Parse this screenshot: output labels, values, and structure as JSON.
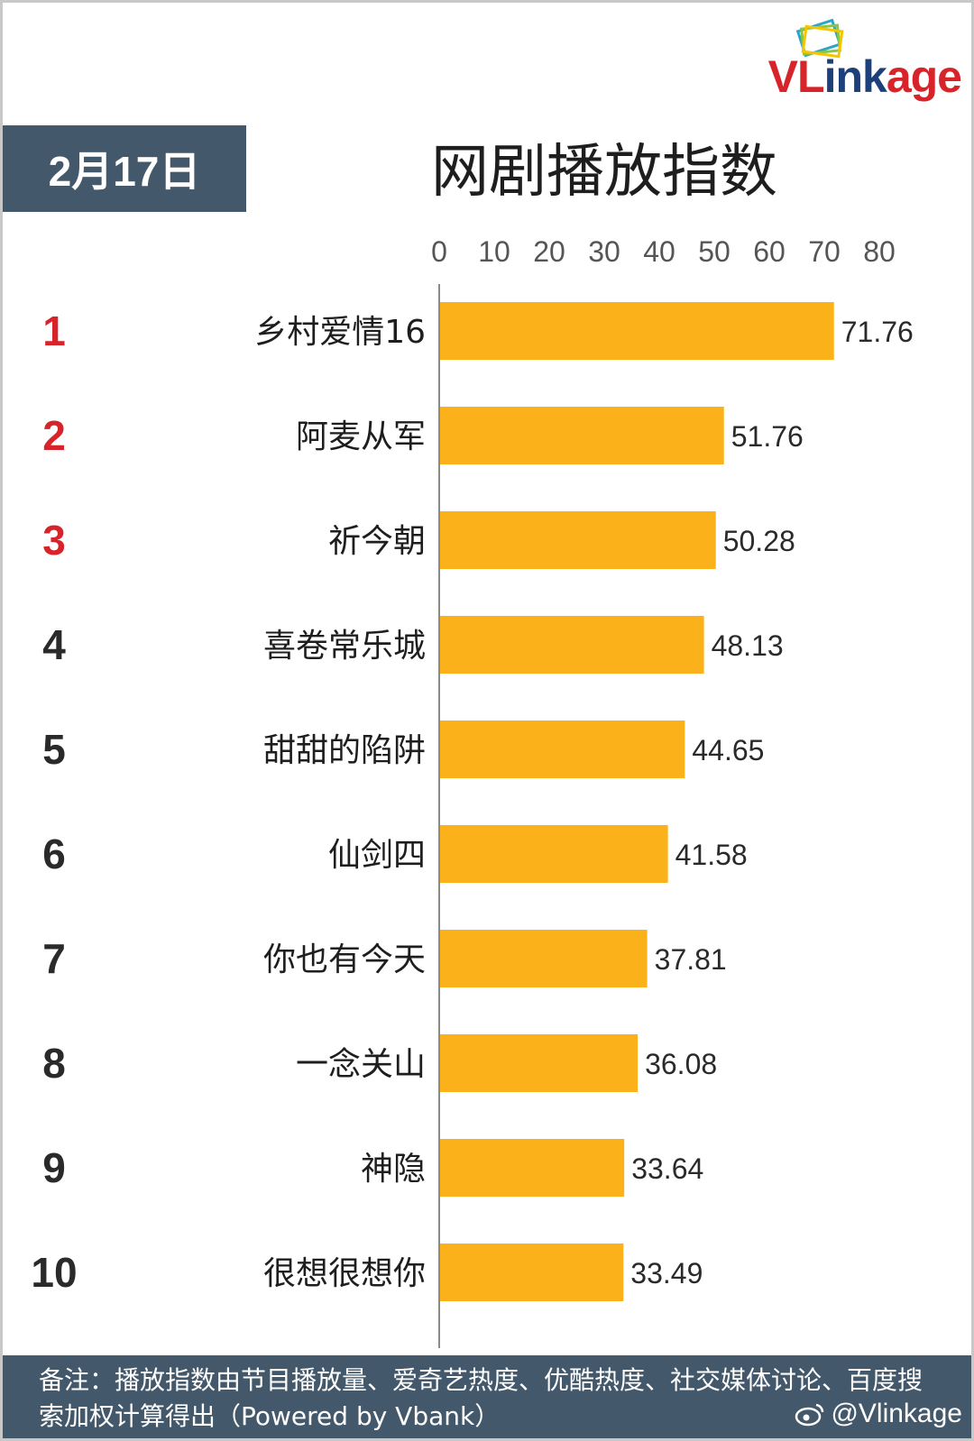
{
  "header": {
    "date": "2月17日",
    "title": "网剧播放指数"
  },
  "logo": {
    "text_red": "VL",
    "text_blue": "ink",
    "text_red2": "age"
  },
  "colors": {
    "bar": "#fbb21a",
    "rank_top": "#d7242b",
    "rank_other": "#2a2a2a",
    "badge_bg": "#44586b"
  },
  "chart_data": {
    "type": "bar",
    "orientation": "horizontal",
    "title": "网剧播放指数",
    "ranks": [
      "1",
      "2",
      "3",
      "4",
      "5",
      "6",
      "7",
      "8",
      "9",
      "10"
    ],
    "categories": [
      "乡村爱情16",
      "阿麦从军",
      "祈今朝",
      "喜卷常乐城",
      "甜甜的陷阱",
      "仙剑四",
      "你也有今天",
      "一念关山",
      "神隐",
      "很想很想你"
    ],
    "values": [
      71.76,
      51.76,
      50.28,
      48.13,
      44.65,
      41.58,
      37.81,
      36.08,
      33.64,
      33.49
    ],
    "value_labels": [
      "71.76",
      "51.76",
      "50.28",
      "48.13",
      "44.65",
      "41.58",
      "37.81",
      "36.08",
      "33.64",
      "33.49"
    ],
    "xticks": [
      "0",
      "10",
      "20",
      "30",
      "40",
      "50",
      "60",
      "70",
      "80"
    ],
    "xlim": [
      0,
      80
    ],
    "grid": false,
    "legend": "none"
  },
  "footer": {
    "note": "备注：播放指数由节目播放量、爱奇艺热度、优酷热度、社交媒体讨论、百度搜索加权计算得出（Powered by Vbank）",
    "watermark": "@Vlinkage"
  }
}
